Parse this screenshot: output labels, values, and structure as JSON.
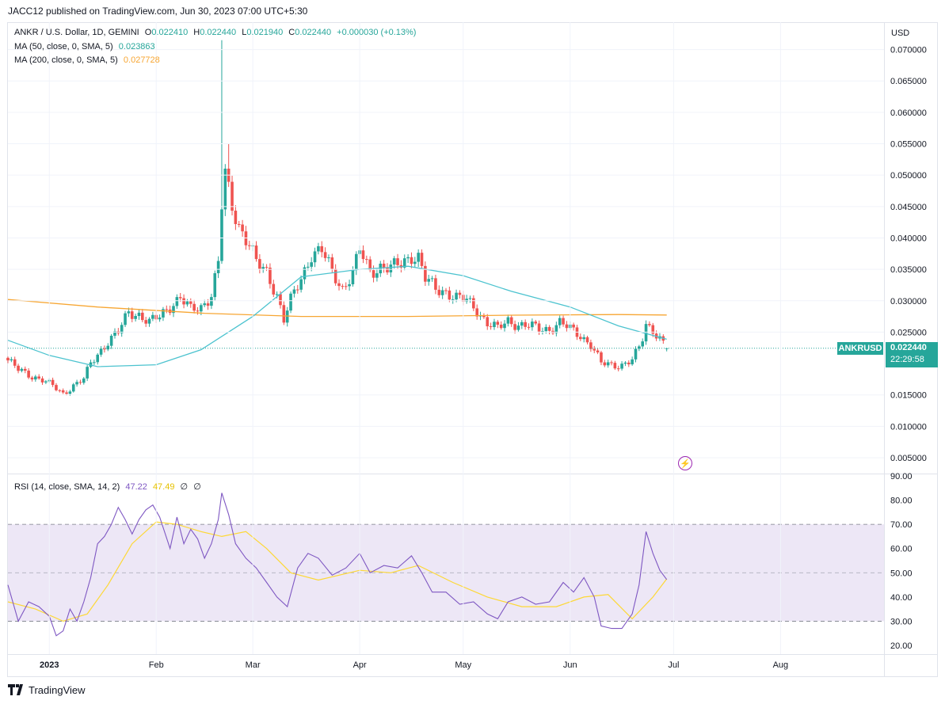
{
  "header": {
    "published": "JACC12 published on TradingView.com, Jun 30, 2023 07:00 UTC+5:30"
  },
  "legend": {
    "symbol": "ANKR / U.S. Dollar, 1D, GEMINI",
    "o_label": "O",
    "o_value": "0.022410",
    "h_label": "H",
    "h_value": "0.022440",
    "l_label": "L",
    "l_value": "0.021940",
    "c_label": "C",
    "c_value": "0.022440",
    "change": "+0.000030 (+0.13%)",
    "ma50_label": "MA (50, close, 0, SMA, 5)",
    "ma50_value": "0.023863",
    "ma200_label": "MA (200, close, 0, SMA, 5)",
    "ma200_value": "0.027728",
    "rsi_label": "RSI (14, close, SMA, 14, 2)",
    "rsi_value": "47.22",
    "rsi_ma_value": "47.49",
    "rsi_extra1": "∅",
    "rsi_extra2": "∅"
  },
  "price_axis": {
    "currency": "USD",
    "ticks": [
      "0.070000",
      "0.065000",
      "0.060000",
      "0.055000",
      "0.050000",
      "0.045000",
      "0.040000",
      "0.035000",
      "0.030000",
      "0.025000",
      "0.015000",
      "0.010000",
      "0.005000"
    ]
  },
  "rsi_axis": {
    "ticks": [
      "90.00",
      "80.00",
      "70.00",
      "60.00",
      "50.00",
      "40.00",
      "30.00",
      "20.00"
    ]
  },
  "time_axis": {
    "labels": [
      "2023",
      "Feb",
      "Mar",
      "Apr",
      "May",
      "Jun",
      "Jul",
      "Aug"
    ]
  },
  "price_tag": {
    "symbol": "ANKRUSD",
    "price": "0.022440",
    "countdown": "22:29:58"
  },
  "footer": {
    "brand": "TradingView"
  },
  "colors": {
    "up": "#26a69a",
    "down": "#ef5350",
    "ma50": "#4cc3cf",
    "ma200": "#f7a633",
    "rsi": "#7e57c2",
    "rsi_ma": "#fdd835",
    "rsi_band": "#ede7f6",
    "price_line": "#26a69a"
  },
  "chart_data": [
    {
      "type": "candlestick",
      "symbol": "ANKR / U.S. Dollar",
      "interval": "1D",
      "x_range": [
        "2022-12-20",
        "2023-08-31"
      ],
      "ylim": [
        0.0,
        0.0725
      ],
      "last": {
        "open": 0.02241,
        "high": 0.02244,
        "low": 0.02194,
        "close": 0.02244
      },
      "close_path": [
        [
          "2022-12-20",
          0.0205
        ],
        [
          "2022-12-23",
          0.019
        ],
        [
          "2022-12-27",
          0.018
        ],
        [
          "2022-12-30",
          0.0174
        ],
        [
          "2023-01-02",
          0.0164
        ],
        [
          "2023-01-05",
          0.0152
        ],
        [
          "2023-01-08",
          0.0165
        ],
        [
          "2023-01-11",
          0.0175
        ],
        [
          "2023-01-13",
          0.02
        ],
        [
          "2023-01-15",
          0.0215
        ],
        [
          "2023-01-18",
          0.0235
        ],
        [
          "2023-01-21",
          0.025
        ],
        [
          "2023-01-24",
          0.0282
        ],
        [
          "2023-01-27",
          0.0278
        ],
        [
          "2023-01-30",
          0.0265
        ],
        [
          "2023-02-02",
          0.0275
        ],
        [
          "2023-02-05",
          0.0292
        ],
        [
          "2023-02-08",
          0.0305
        ],
        [
          "2023-02-11",
          0.0285
        ],
        [
          "2023-02-14",
          0.029
        ],
        [
          "2023-02-17",
          0.031
        ],
        [
          "2023-02-19",
          0.036
        ],
        [
          "2023-02-20",
          0.045
        ],
        [
          "2023-02-21",
          0.05
        ],
        [
          "2023-02-23",
          0.045
        ],
        [
          "2023-02-25",
          0.042
        ],
        [
          "2023-02-28",
          0.039
        ],
        [
          "2023-03-02",
          0.036
        ],
        [
          "2023-03-05",
          0.0345
        ],
        [
          "2023-03-08",
          0.031
        ],
        [
          "2023-03-10",
          0.027
        ],
        [
          "2023-03-12",
          0.03
        ],
        [
          "2023-03-15",
          0.0335
        ],
        [
          "2023-03-18",
          0.0375
        ],
        [
          "2023-03-21",
          0.038
        ],
        [
          "2023-03-24",
          0.0345
        ],
        [
          "2023-03-27",
          0.032
        ],
        [
          "2023-03-30",
          0.0345
        ],
        [
          "2023-04-01",
          0.038
        ],
        [
          "2023-04-04",
          0.0345
        ],
        [
          "2023-04-07",
          0.0355
        ],
        [
          "2023-04-10",
          0.0352
        ],
        [
          "2023-04-13",
          0.0358
        ],
        [
          "2023-04-16",
          0.0372
        ],
        [
          "2023-04-18",
          0.037
        ],
        [
          "2023-04-20",
          0.0335
        ],
        [
          "2023-04-23",
          0.0318
        ],
        [
          "2023-04-26",
          0.0315
        ],
        [
          "2023-04-29",
          0.0305
        ],
        [
          "2023-05-02",
          0.03
        ],
        [
          "2023-05-05",
          0.0285
        ],
        [
          "2023-05-08",
          0.0265
        ],
        [
          "2023-05-11",
          0.0255
        ],
        [
          "2023-05-14",
          0.0268
        ],
        [
          "2023-05-17",
          0.0262
        ],
        [
          "2023-05-20",
          0.026
        ],
        [
          "2023-05-23",
          0.0255
        ],
        [
          "2023-05-26",
          0.0255
        ],
        [
          "2023-05-29",
          0.0265
        ],
        [
          "2023-06-01",
          0.0255
        ],
        [
          "2023-06-04",
          0.0245
        ],
        [
          "2023-06-07",
          0.023
        ],
        [
          "2023-06-10",
          0.02
        ],
        [
          "2023-06-13",
          0.0198
        ],
        [
          "2023-06-16",
          0.0198
        ],
        [
          "2023-06-19",
          0.0205
        ],
        [
          "2023-06-21",
          0.0225
        ],
        [
          "2023-06-22",
          0.024
        ],
        [
          "2023-06-23",
          0.0262
        ],
        [
          "2023-06-25",
          0.0255
        ],
        [
          "2023-06-27",
          0.024
        ],
        [
          "2023-06-29",
          0.02244
        ]
      ],
      "spike_highs": [
        [
          "2023-02-20",
          0.0715
        ],
        [
          "2023-02-22",
          0.055
        ]
      ],
      "ma50": [
        [
          "2022-12-20",
          0.0237
        ],
        [
          "2023-01-01",
          0.0213
        ],
        [
          "2023-01-15",
          0.0195
        ],
        [
          "2023-02-01",
          0.0198
        ],
        [
          "2023-02-14",
          0.0222
        ],
        [
          "2023-03-01",
          0.0275
        ],
        [
          "2023-03-15",
          0.0338
        ],
        [
          "2023-04-01",
          0.035
        ],
        [
          "2023-04-15",
          0.0355
        ],
        [
          "2023-05-01",
          0.034
        ],
        [
          "2023-05-15",
          0.0315
        ],
        [
          "2023-06-01",
          0.029
        ],
        [
          "2023-06-15",
          0.026
        ],
        [
          "2023-06-29",
          0.023863
        ]
      ],
      "ma200": [
        [
          "2022-12-20",
          0.0302
        ],
        [
          "2023-01-15",
          0.029
        ],
        [
          "2023-02-15",
          0.028
        ],
        [
          "2023-03-15",
          0.0275
        ],
        [
          "2023-04-15",
          0.0275
        ],
        [
          "2023-05-15",
          0.0277
        ],
        [
          "2023-06-15",
          0.0278
        ],
        [
          "2023-06-29",
          0.027728
        ]
      ]
    },
    {
      "type": "line",
      "title": "RSI (14, close, SMA, 14, 2)",
      "ylim": [
        20,
        90
      ],
      "bands": [
        30,
        50,
        70
      ],
      "series": [
        {
          "name": "RSI",
          "values": [
            [
              "2022-12-20",
              45
            ],
            [
              "2022-12-23",
              30
            ],
            [
              "2022-12-26",
              38
            ],
            [
              "2022-12-29",
              36
            ],
            [
              "2023-01-01",
              32
            ],
            [
              "2023-01-03",
              24
            ],
            [
              "2023-01-05",
              26
            ],
            [
              "2023-01-07",
              35
            ],
            [
              "2023-01-09",
              30
            ],
            [
              "2023-01-11",
              38
            ],
            [
              "2023-01-13",
              48
            ],
            [
              "2023-01-15",
              62
            ],
            [
              "2023-01-17",
              65
            ],
            [
              "2023-01-19",
              70
            ],
            [
              "2023-01-21",
              77
            ],
            [
              "2023-01-23",
              72
            ],
            [
              "2023-01-25",
              66
            ],
            [
              "2023-01-27",
              72
            ],
            [
              "2023-01-29",
              76
            ],
            [
              "2023-01-31",
              78
            ],
            [
              "2023-02-02",
              73
            ],
            [
              "2023-02-05",
              60
            ],
            [
              "2023-02-07",
              73
            ],
            [
              "2023-02-09",
              62
            ],
            [
              "2023-02-11",
              68
            ],
            [
              "2023-02-13",
              64
            ],
            [
              "2023-02-15",
              56
            ],
            [
              "2023-02-17",
              62
            ],
            [
              "2023-02-19",
              72
            ],
            [
              "2023-02-20",
              83
            ],
            [
              "2023-02-22",
              74
            ],
            [
              "2023-02-24",
              62
            ],
            [
              "2023-02-27",
              56
            ],
            [
              "2023-03-02",
              52
            ],
            [
              "2023-03-05",
              46
            ],
            [
              "2023-03-08",
              40
            ],
            [
              "2023-03-11",
              36
            ],
            [
              "2023-03-14",
              52
            ],
            [
              "2023-03-17",
              58
            ],
            [
              "2023-03-20",
              56
            ],
            [
              "2023-03-24",
              49
            ],
            [
              "2023-03-28",
              52
            ],
            [
              "2023-04-01",
              58
            ],
            [
              "2023-04-04",
              50
            ],
            [
              "2023-04-08",
              53
            ],
            [
              "2023-04-12",
              52
            ],
            [
              "2023-04-16",
              57
            ],
            [
              "2023-04-19",
              50
            ],
            [
              "2023-04-22",
              42
            ],
            [
              "2023-04-26",
              42
            ],
            [
              "2023-04-30",
              37
            ],
            [
              "2023-05-04",
              38
            ],
            [
              "2023-05-08",
              33
            ],
            [
              "2023-05-11",
              31
            ],
            [
              "2023-05-14",
              38
            ],
            [
              "2023-05-18",
              40
            ],
            [
              "2023-05-22",
              37
            ],
            [
              "2023-05-26",
              38
            ],
            [
              "2023-05-30",
              46
            ],
            [
              "2023-06-02",
              42
            ],
            [
              "2023-06-05",
              48
            ],
            [
              "2023-06-08",
              40
            ],
            [
              "2023-06-10",
              28
            ],
            [
              "2023-06-13",
              27
            ],
            [
              "2023-06-16",
              27
            ],
            [
              "2023-06-19",
              33
            ],
            [
              "2023-06-21",
              45
            ],
            [
              "2023-06-23",
              67
            ],
            [
              "2023-06-25",
              58
            ],
            [
              "2023-06-27",
              51
            ],
            [
              "2023-06-29",
              47.22
            ]
          ]
        },
        {
          "name": "RSI-based MA",
          "values": [
            [
              "2022-12-20",
              38
            ],
            [
              "2022-12-28",
              35
            ],
            [
              "2023-01-05",
              30
            ],
            [
              "2023-01-12",
              33
            ],
            [
              "2023-01-18",
              45
            ],
            [
              "2023-01-25",
              62
            ],
            [
              "2023-02-01",
              71
            ],
            [
              "2023-02-07",
              70
            ],
            [
              "2023-02-14",
              67
            ],
            [
              "2023-02-20",
              65
            ],
            [
              "2023-02-27",
              67
            ],
            [
              "2023-03-05",
              60
            ],
            [
              "2023-03-12",
              50
            ],
            [
              "2023-03-20",
              47
            ],
            [
              "2023-04-01",
              51
            ],
            [
              "2023-04-10",
              50
            ],
            [
              "2023-04-18",
              53
            ],
            [
              "2023-04-28",
              46
            ],
            [
              "2023-05-08",
              40
            ],
            [
              "2023-05-18",
              36
            ],
            [
              "2023-05-28",
              36
            ],
            [
              "2023-06-05",
              40
            ],
            [
              "2023-06-12",
              41
            ],
            [
              "2023-06-19",
              31
            ],
            [
              "2023-06-25",
              40
            ],
            [
              "2023-06-29",
              47.49
            ]
          ]
        }
      ]
    }
  ]
}
